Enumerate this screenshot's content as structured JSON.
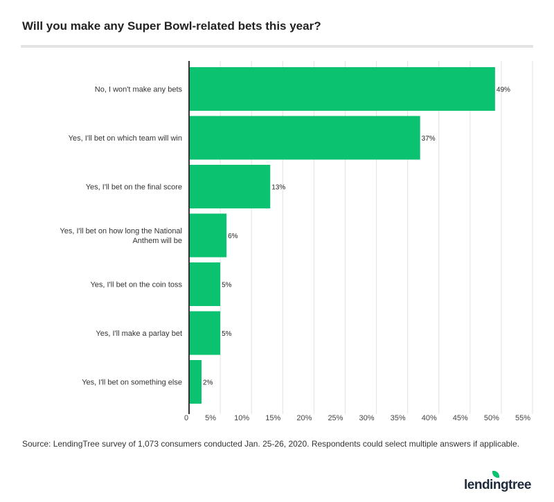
{
  "chart_data": {
    "type": "bar",
    "orientation": "horizontal",
    "title": "Will you make any Super Bowl-related bets this year?",
    "categories": [
      "No, I won't make any bets",
      "Yes, I'll bet on which team will win",
      "Yes, I'll bet on the final score",
      "Yes, I'll bet on how long the National Anthem will be",
      "Yes, I'll bet on the coin toss",
      "Yes, I'll make a parlay bet",
      "Yes, I'll bet on something else"
    ],
    "values": [
      49,
      37,
      13,
      6,
      5,
      5,
      2
    ],
    "data_labels": [
      "49%",
      "37%",
      "13%",
      "6%",
      "5%",
      "5%",
      "2%"
    ],
    "xlim": [
      0,
      55
    ],
    "x_ticks": [
      "0",
      "5%",
      "10%",
      "15%",
      "20%",
      "25%",
      "30%",
      "35%",
      "40%",
      "45%",
      "50%",
      "55%"
    ],
    "grid": true,
    "bar_color": "#0ac26f"
  },
  "source": "Source: LendingTree survey of 1,073 consumers conducted Jan. 25-26, 2020. Respondents could select multiple answers if applicable.",
  "logo": "lendingtree"
}
